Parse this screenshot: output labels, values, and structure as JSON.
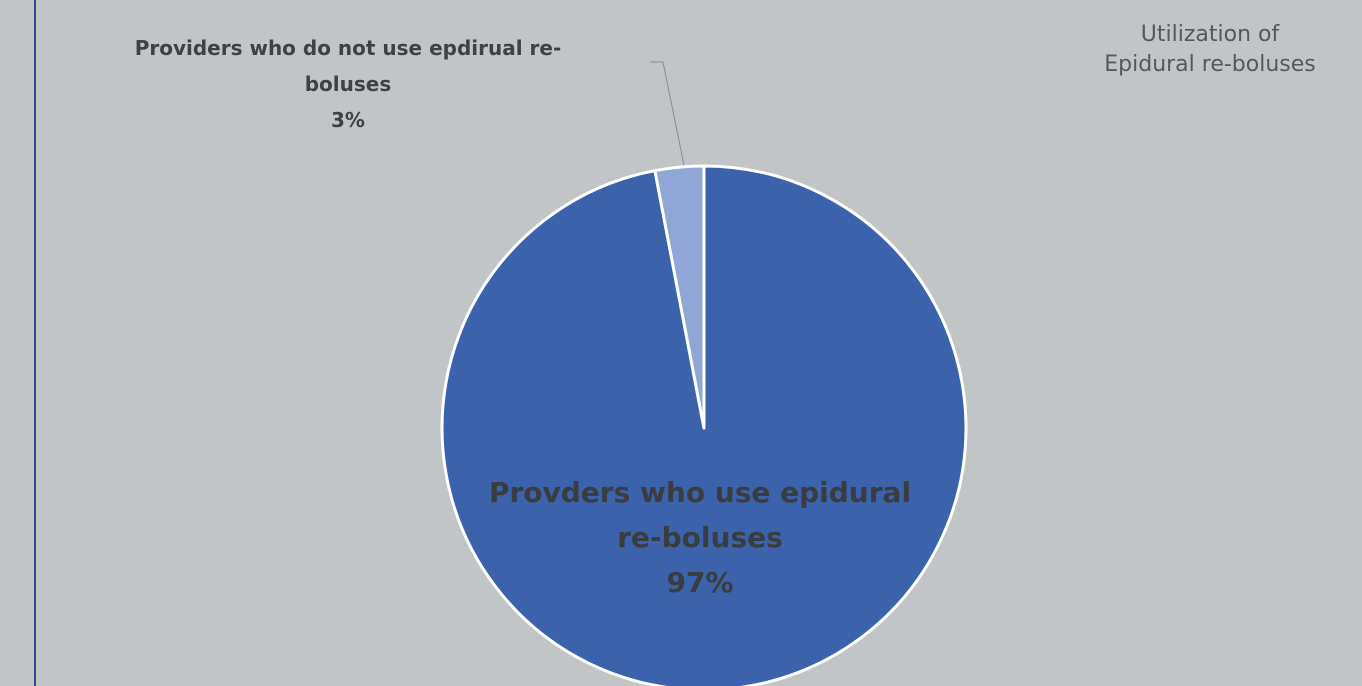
{
  "chart_data": {
    "type": "pie",
    "title": "Utilization of Epidural re-boluses",
    "title_lines": [
      "Utilization of",
      "Epidural re-boluses"
    ],
    "slices": [
      {
        "label": "Provders who use epidural re-boluses",
        "label_lines": [
          "Provders who use epidural",
          "re-boluses"
        ],
        "value": 97,
        "pct_label": "97%",
        "color": "#3b62ab"
      },
      {
        "label": "Providers who do not use epdirual re-boluses",
        "label_lines": [
          "Providers who do not use epdirual re-",
          "boluses"
        ],
        "value": 3,
        "pct_label": "3%",
        "color": "#8fa6d6"
      }
    ],
    "legend": "none",
    "start_angle_deg": 0,
    "direction": "clockwise"
  }
}
